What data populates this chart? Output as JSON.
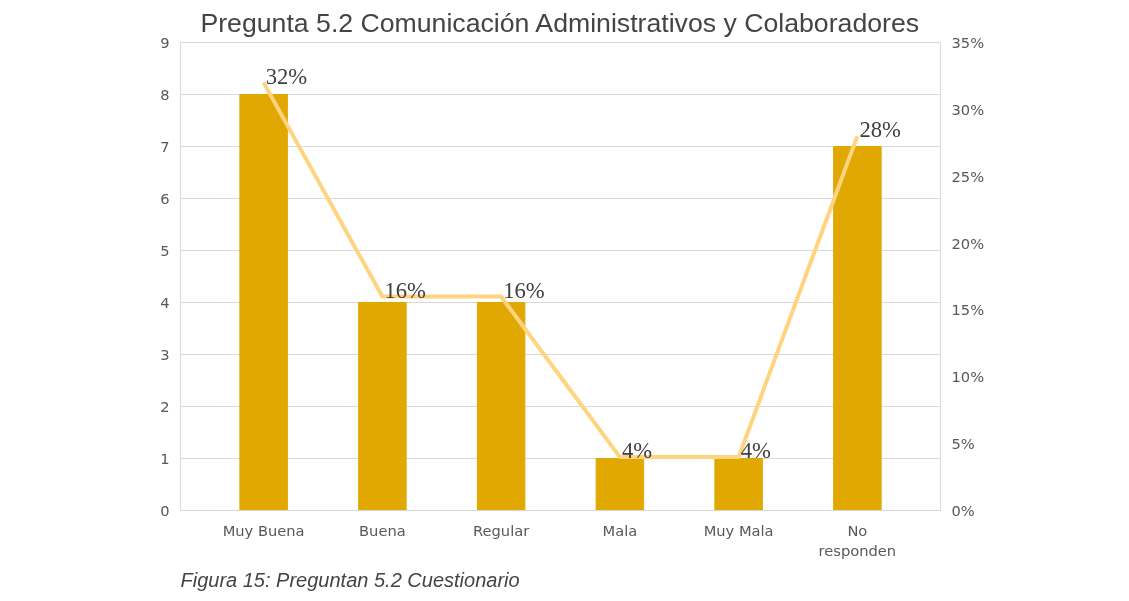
{
  "chart_data": {
    "type": "bar",
    "title": "Pregunta 5.2 Comunicación Administrativos y Colaboradores",
    "categories": [
      "Muy Buena",
      "Buena",
      "Regular",
      "Mala",
      "Muy Mala",
      "No\nresponden"
    ],
    "series": [
      {
        "color": "#e0a800",
        "values": [
          8,
          4,
          4,
          1,
          1,
          7
        ]
      },
      {
        "type": "line",
        "axis": "y2",
        "color": "#ffd480",
        "values": [
          32,
          16,
          16,
          4,
          4,
          28
        ],
        "value_labels": [
          "32%",
          "16%",
          "16%",
          "4%",
          "4%",
          "28%"
        ]
      }
    ],
    "ylim": [
      0,
      9
    ],
    "yticks": [
      0,
      1,
      2,
      3,
      4,
      5,
      6,
      7,
      8,
      9
    ],
    "y2lim": [
      0,
      35
    ],
    "y2ticks": [
      {
        "value": 0,
        "label": "0%"
      },
      {
        "value": 5,
        "label": "5%"
      },
      {
        "value": 10,
        "label": "10%"
      },
      {
        "value": 15,
        "label": "15%"
      },
      {
        "value": 20,
        "label": "20%"
      },
      {
        "value": 25,
        "label": "25%"
      },
      {
        "value": 30,
        "label": "30%"
      },
      {
        "value": 35,
        "label": "35%"
      }
    ],
    "grid": "y",
    "marker": "none",
    "line_style": "solid",
    "annotations": [
      "Figura 15: Preguntan 5.2 Cuestionario"
    ]
  }
}
